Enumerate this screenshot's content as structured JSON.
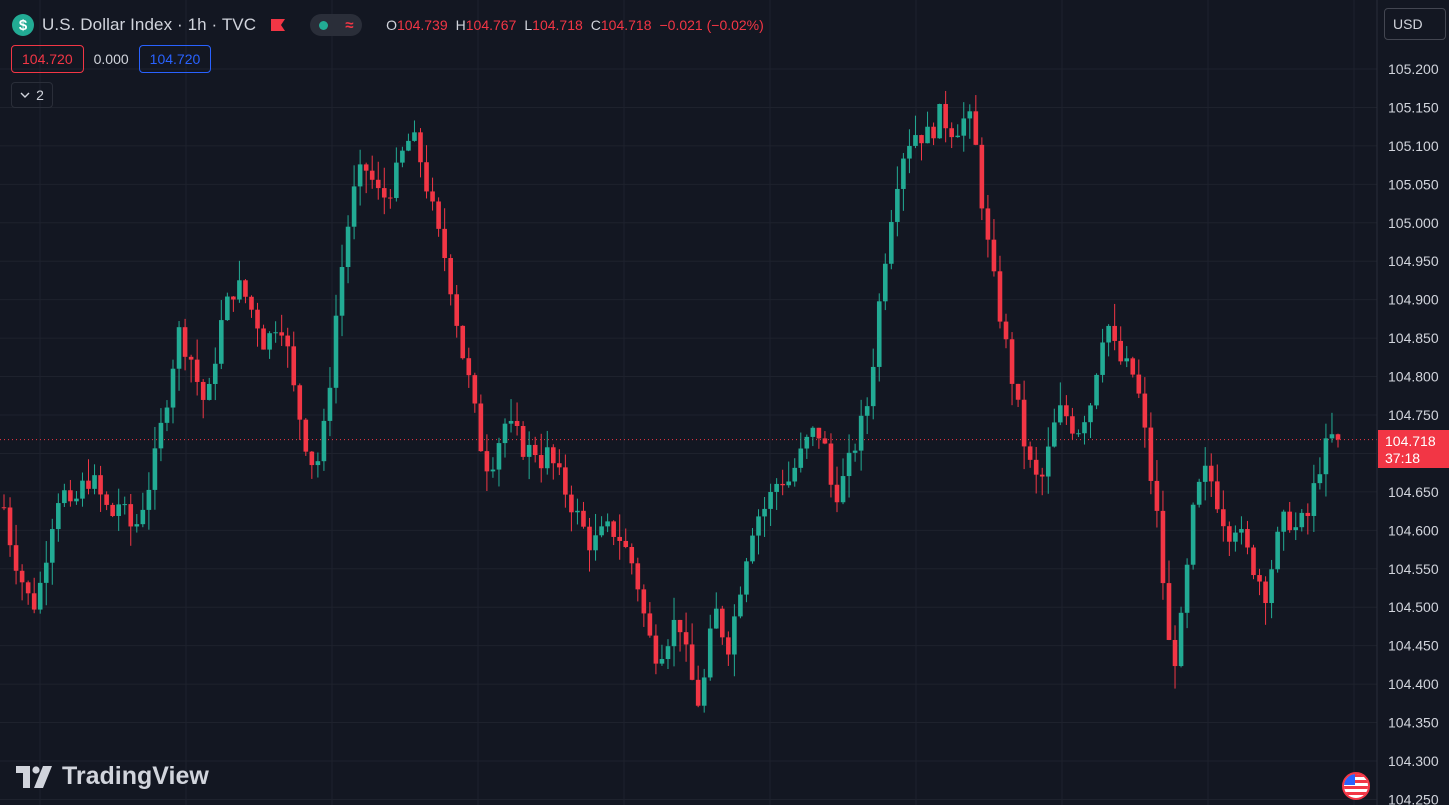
{
  "header": {
    "symbol_icon": "$",
    "title": "U.S. Dollar Index · 1h · TVC",
    "flag_icon": "red-flag-icon",
    "ohlc": [
      {
        "k": "O",
        "v": "104.739"
      },
      {
        "k": "H",
        "v": "104.767"
      },
      {
        "k": "L",
        "v": "104.718"
      },
      {
        "k": "C",
        "v": "104.718"
      }
    ],
    "change": "−0.021 (−0.02%)"
  },
  "trade": {
    "sell_price": "104.720",
    "spread": "0.000",
    "buy_price": "104.720"
  },
  "indicators": {
    "collapse_count": "2"
  },
  "currency": "USD",
  "last_price": {
    "value": "104.718",
    "countdown": "37:18"
  },
  "branding": {
    "logo_text": "TradingView"
  },
  "colors": {
    "background": "#131722",
    "up": "#22ab94",
    "down": "#f23645",
    "grid": "#1e222d"
  },
  "chart_data": {
    "type": "candlestick",
    "interval": "1h",
    "y_ticks": [
      "105.200",
      "105.150",
      "105.100",
      "105.050",
      "105.000",
      "104.950",
      "104.900",
      "104.850",
      "104.800",
      "104.750",
      "104.700",
      "104.650",
      "104.600",
      "104.550",
      "104.500",
      "104.450",
      "104.400",
      "104.350",
      "104.300",
      "104.250"
    ],
    "ylim": [
      104.24,
      105.215
    ],
    "current_price": 104.718,
    "close_path": [
      104.63,
      104.58,
      104.55,
      104.52,
      104.5,
      104.53,
      104.58,
      104.63,
      104.66,
      104.62,
      104.64,
      104.66,
      104.67,
      104.65,
      104.63,
      104.62,
      104.64,
      104.61,
      104.6,
      104.63,
      104.66,
      104.7,
      104.75,
      104.8,
      104.86,
      104.84,
      104.82,
      104.78,
      104.76,
      104.82,
      104.87,
      104.9,
      104.92,
      104.91,
      104.89,
      104.87,
      104.84,
      104.86,
      104.88,
      104.84,
      104.78,
      104.74,
      104.7,
      104.68,
      104.72,
      104.8,
      104.9,
      104.97,
      105.03,
      105.06,
      105.07,
      105.05,
      105.03,
      105.04,
      105.06,
      105.09,
      105.11,
      105.1,
      105.06,
      105.02,
      104.98,
      104.95,
      104.9,
      104.84,
      104.8,
      104.75,
      104.7,
      104.68,
      104.71,
      104.74,
      104.73,
      104.72,
      104.7,
      104.71,
      104.69,
      104.7,
      104.68,
      104.66,
      104.64,
      104.62,
      104.6,
      104.58,
      104.59,
      104.6,
      104.6,
      104.59,
      104.57,
      104.55,
      104.5,
      104.46,
      104.44,
      104.45,
      104.47,
      104.49,
      104.44,
      104.4,
      104.37,
      104.43,
      104.5,
      104.47,
      104.45,
      104.5,
      104.55,
      104.6,
      104.62,
      104.63,
      104.65,
      104.67,
      104.66,
      104.68,
      104.7,
      104.72,
      104.73,
      104.72,
      104.66,
      104.65,
      104.67,
      104.7,
      104.73,
      104.76,
      104.83,
      104.92,
      104.99,
      105.05,
      105.09,
      105.11,
      105.12,
      105.11,
      105.12,
      105.14,
      105.13,
      105.12,
      105.13,
      105.14,
      105.1,
      105.02,
      104.95,
      104.9,
      104.85,
      104.8,
      104.75,
      104.7,
      104.67,
      104.66,
      104.7,
      104.74,
      104.76,
      104.74,
      104.73,
      104.75,
      104.77,
      104.83,
      104.88,
      104.84,
      104.82,
      104.81,
      104.8,
      104.75,
      104.68,
      104.62,
      104.52,
      104.42,
      104.45,
      104.53,
      104.62,
      104.66,
      104.68,
      104.65,
      104.62,
      104.6,
      104.61,
      104.58,
      104.56,
      104.54,
      104.52,
      104.56,
      104.6,
      104.62,
      104.6,
      104.61,
      104.62,
      104.67,
      104.7,
      104.72,
      104.718
    ]
  }
}
